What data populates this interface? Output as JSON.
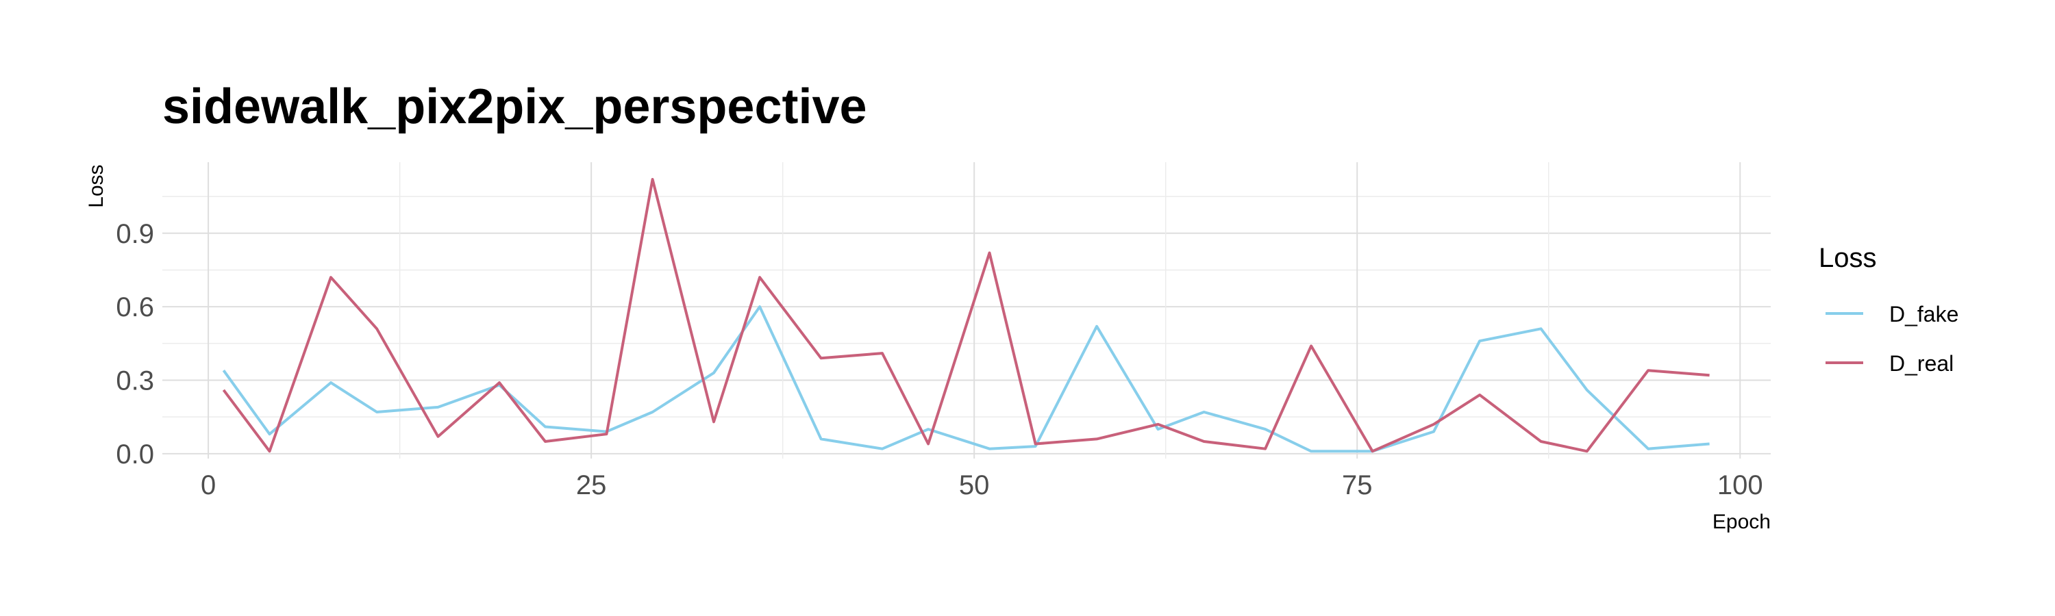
{
  "chart_data": {
    "type": "line",
    "title": "sidewalk_pix2pix_perspective",
    "xlabel": "Epoch",
    "ylabel": "Loss",
    "xlim": [
      -3,
      102
    ],
    "ylim": [
      -0.02,
      1.19
    ],
    "x_ticks": [
      0,
      25,
      50,
      75,
      100
    ],
    "x_tick_labels": [
      "0",
      "25",
      "50",
      "75",
      "100"
    ],
    "y_ticks": [
      0.0,
      0.3,
      0.6,
      0.9
    ],
    "y_tick_labels": [
      "0.0",
      "0.3",
      "0.6",
      "0.9"
    ],
    "grid": true,
    "legend": {
      "title": "Loss",
      "placement": "right"
    },
    "series": [
      {
        "name": "D_fake",
        "color": "#87CEEB",
        "x": [
          1,
          4,
          8,
          11,
          15,
          19,
          22,
          26,
          29,
          33,
          36,
          40,
          44,
          47,
          51,
          54,
          58,
          62,
          65,
          69,
          72,
          76,
          80,
          83,
          87,
          90,
          94,
          98
        ],
        "y": [
          0.34,
          0.08,
          0.29,
          0.17,
          0.19,
          0.28,
          0.11,
          0.09,
          0.17,
          0.33,
          0.6,
          0.06,
          0.02,
          0.1,
          0.02,
          0.03,
          0.52,
          0.1,
          0.17,
          0.1,
          0.01,
          0.01,
          0.09,
          0.46,
          0.51,
          0.26,
          0.02,
          0.04
        ]
      },
      {
        "name": "D_real",
        "color": "#C8607A",
        "x": [
          1,
          4,
          8,
          11,
          15,
          19,
          22,
          26,
          29,
          33,
          36,
          40,
          44,
          47,
          51,
          54,
          58,
          62,
          65,
          69,
          72,
          76,
          80,
          83,
          87,
          90,
          94,
          98
        ],
        "y": [
          0.26,
          0.01,
          0.72,
          0.51,
          0.07,
          0.29,
          0.05,
          0.08,
          1.12,
          0.13,
          0.72,
          0.39,
          0.41,
          0.04,
          0.82,
          0.04,
          0.06,
          0.12,
          0.05,
          0.02,
          0.44,
          0.01,
          0.12,
          0.24,
          0.05,
          0.01,
          0.34,
          0.32
        ]
      }
    ]
  }
}
